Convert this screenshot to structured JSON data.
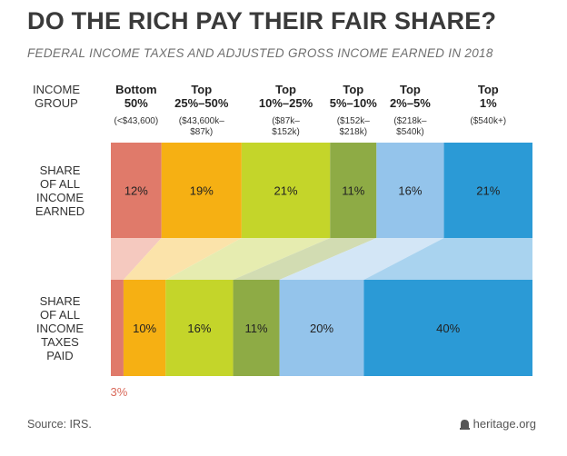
{
  "title": "DO THE RICH PAY THEIR FAIR SHARE?",
  "subtitle": "FEDERAL INCOME TAXES AND ADJUSTED GROSS INCOME EARNED IN 2018",
  "source": "Source: IRS.",
  "brand": "heritage.org",
  "chart_data": {
    "type": "bar",
    "orientation": "horizontal-stacked",
    "group_header": [
      "INCOME",
      "GROUP"
    ],
    "categories": [
      {
        "name": [
          "Bottom",
          "50%"
        ],
        "range": [
          "(<$43,600)"
        ],
        "color": "#e07a6a"
      },
      {
        "name": [
          "Top",
          "25%–50%"
        ],
        "range": [
          "($43,600k–",
          "$87k)"
        ],
        "color": "#f6b013"
      },
      {
        "name": [
          "Top",
          "10%–25%"
        ],
        "range": [
          "($87k–",
          "$152k)"
        ],
        "color": "#c4d52a"
      },
      {
        "name": [
          "Top",
          "5%–10%"
        ],
        "range": [
          "($152k–",
          "$218k)"
        ],
        "color": "#8eab45"
      },
      {
        "name": [
          "Top",
          "2%–5%"
        ],
        "range": [
          "($218k–",
          "$540k)"
        ],
        "color": "#94c4eb"
      },
      {
        "name": [
          "Top",
          "1%"
        ],
        "range": [
          "($540k+)"
        ],
        "color": "#2b9ad6"
      }
    ],
    "series": [
      {
        "name": "Share of all income earned",
        "label_lines": [
          "SHARE",
          "OF ALL",
          "INCOME",
          "EARNED"
        ],
        "values": [
          12,
          19,
          21,
          11,
          16,
          21
        ],
        "display_labels": [
          "12%",
          "19%",
          "21%",
          "11%",
          "16%",
          "21%"
        ]
      },
      {
        "name": "Share of all income taxes paid",
        "label_lines": [
          "SHARE",
          "OF ALL",
          "INCOME",
          "TAXES",
          "PAID"
        ],
        "values": [
          3,
          10,
          16,
          11,
          20,
          40
        ],
        "display_labels": [
          "3%",
          "10%",
          "16%",
          "11%",
          "20%",
          "40%"
        ]
      }
    ],
    "band_colors": [
      "#f5c9bf",
      "#fbe3aa",
      "#e6ecb0",
      "#d2dcb2",
      "#d3e6f6",
      "#a9d3ef"
    ]
  }
}
